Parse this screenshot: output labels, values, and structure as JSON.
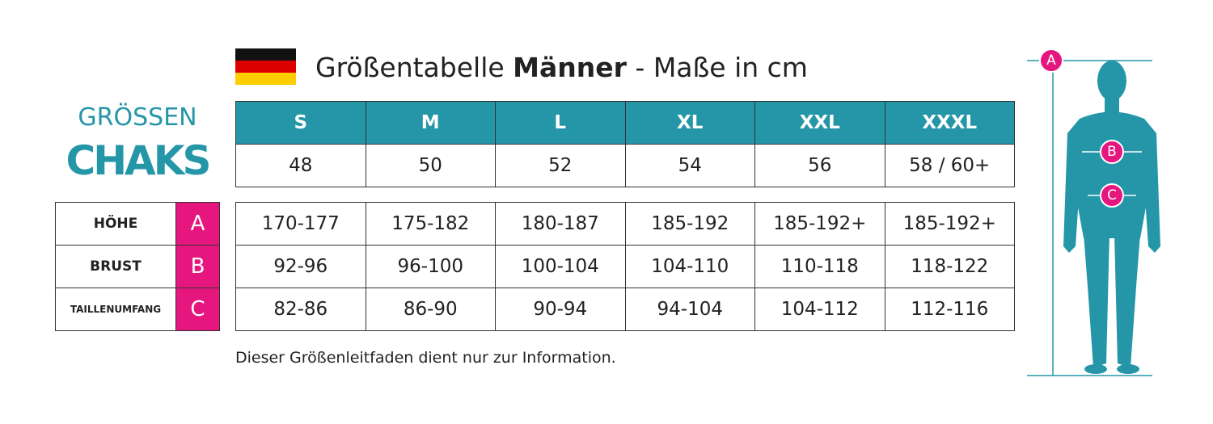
{
  "title": {
    "part1": "Größentabelle",
    "bold": "Männer",
    "part2": "- Maße in cm"
  },
  "brand": {
    "line1": "GRÖSSEN",
    "line2": "CHAKS"
  },
  "size_table": {
    "header": [
      "S",
      "M",
      "L",
      "XL",
      "XXL",
      "XXXL"
    ],
    "row": [
      "48",
      "50",
      "52",
      "54",
      "56",
      "58 / 60+"
    ]
  },
  "measure_table": {
    "rows": [
      {
        "label": "HÖHE",
        "letter": "A",
        "values": [
          "170-177",
          "175-182",
          "180-187",
          "185-192",
          "185-192+",
          "185-192+"
        ]
      },
      {
        "label": "BRUST",
        "letter": "B",
        "values": [
          "92-96",
          "96-100",
          "100-104",
          "104-110",
          "110-118",
          "118-122"
        ]
      },
      {
        "label": "TAILLENUMFANG",
        "letter": "C",
        "values": [
          "82-86",
          "86-90",
          "90-94",
          "94-104",
          "104-112",
          "112-116"
        ]
      }
    ]
  },
  "note": "Dieser Größenleitfaden dient nur zur Information."
}
